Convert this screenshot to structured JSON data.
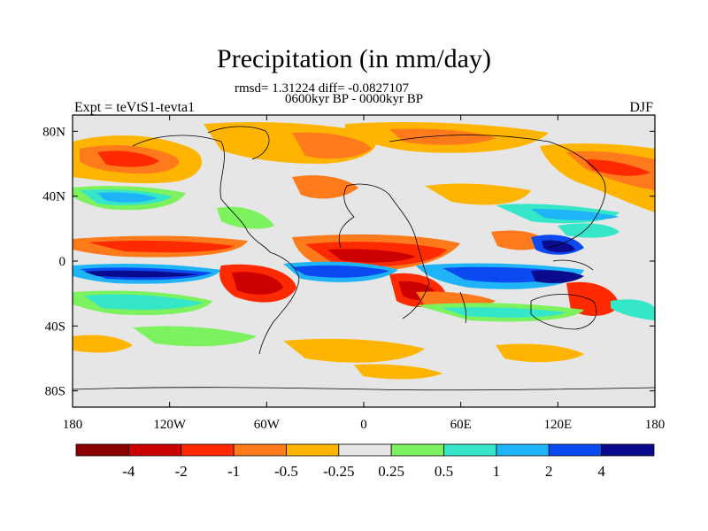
{
  "chart_data": {
    "type": "heatmap",
    "title": "Precipitation (in mm/day)",
    "subtitle_stats": "rmsd= 1.31224 diff= -0.0827107",
    "subtitle_period": "0600kyr BP - 0000kyr BP",
    "left_label": "Expt = teVtS1-tevta1",
    "right_label": "DJF",
    "x_ticks": [
      "180",
      "120W",
      "60W",
      "0",
      "60E",
      "120E",
      "180"
    ],
    "y_ticks": [
      "80N",
      "40N",
      "0",
      "40S",
      "80S"
    ],
    "x_range_deg": [
      -180,
      180
    ],
    "y_range_deg": [
      -90,
      90
    ],
    "colorbar": {
      "labels": [
        "-4",
        "-2",
        "-1",
        "-0.5",
        "-0.25",
        "0.25",
        "0.5",
        "1",
        "2",
        "4"
      ],
      "colors": [
        "#8b0000",
        "#cc0000",
        "#ff2a00",
        "#ff7a1a",
        "#ffb500",
        "#e6e6e6",
        "#7cf25e",
        "#36e6c8",
        "#1fb4f7",
        "#0a4af0",
        "#0a0a8c"
      ]
    }
  }
}
